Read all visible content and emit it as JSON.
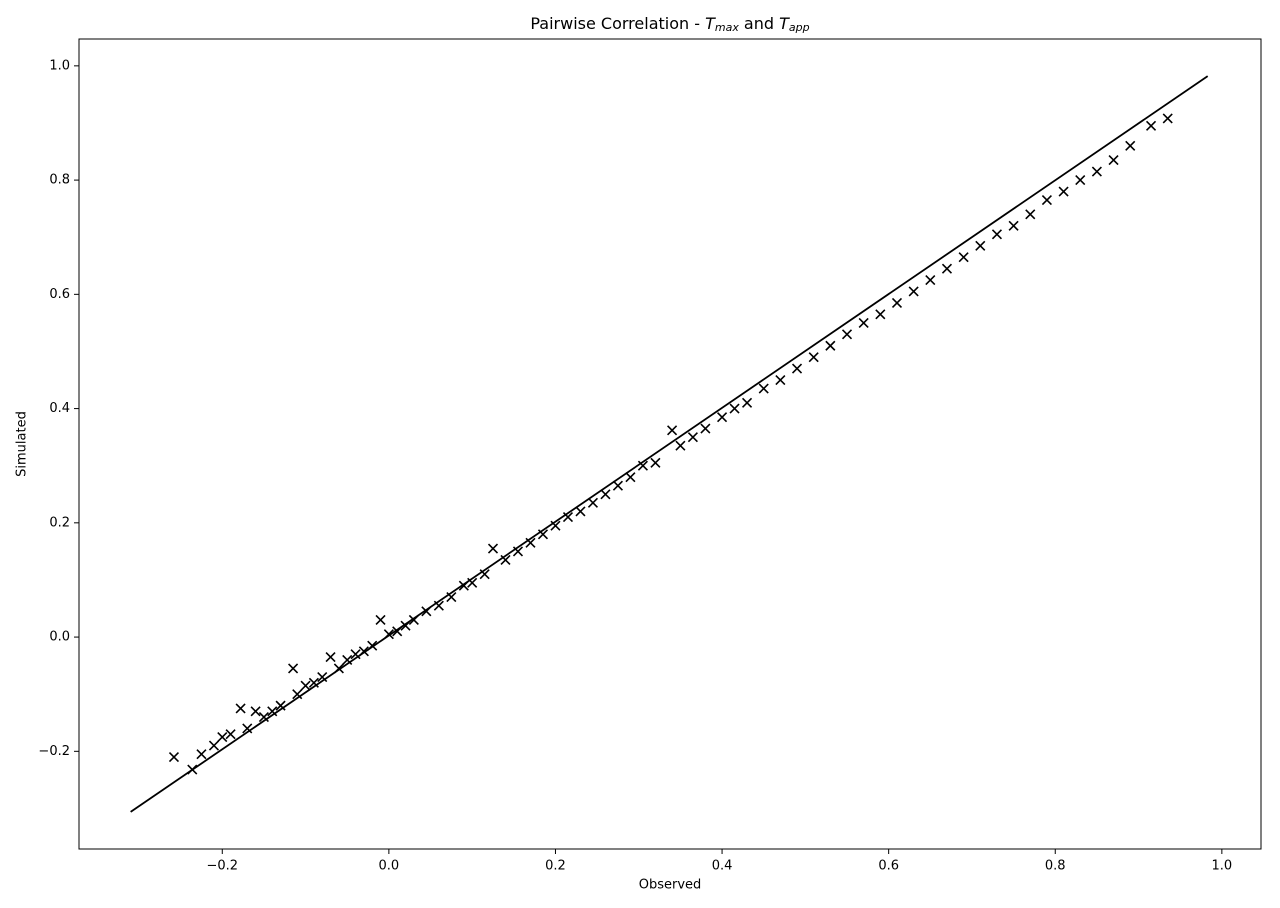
{
  "chart_data": {
    "type": "scatter",
    "title": [
      "Pairwise Correlation - ",
      "T",
      "max",
      " and ",
      "T",
      "app"
    ],
    "xlabel": "Observed",
    "ylabel": "Simulated",
    "xlim": [
      -0.372,
      1.047
    ],
    "ylim": [
      -0.371,
      1.047
    ],
    "xticks": [
      {
        "value": -0.2,
        "label": "−0.2"
      },
      {
        "value": 0,
        "label": "0.0"
      },
      0.2,
      0.4,
      0.6,
      0.8,
      {
        "value": 1,
        "label": "1.0"
      }
    ],
    "yticks": [
      {
        "value": -0.2,
        "label": "−0.2"
      },
      {
        "value": 0,
        "label": "0.0"
      },
      0.2,
      0.4,
      0.6,
      0.8,
      {
        "value": 1,
        "label": "1.0"
      }
    ],
    "grid": false,
    "color": "#000000",
    "marker": "x",
    "line": {
      "x": [
        -0.31,
        0.983
      ],
      "y": [
        -0.306,
        0.982
      ],
      "color": "#000000"
    },
    "x": [
      -0.258,
      -0.236,
      -0.225,
      -0.21,
      -0.2,
      -0.19,
      -0.178,
      -0.17,
      -0.16,
      -0.15,
      -0.14,
      -0.13,
      -0.115,
      -0.11,
      -0.1,
      -0.09,
      -0.08,
      -0.07,
      -0.06,
      -0.05,
      -0.04,
      -0.03,
      -0.02,
      -0.01,
      0.0,
      0.01,
      0.02,
      0.03,
      0.045,
      0.06,
      0.075,
      0.09,
      0.1,
      0.115,
      0.125,
      0.14,
      0.155,
      0.17,
      0.185,
      0.2,
      0.215,
      0.23,
      0.245,
      0.26,
      0.275,
      0.29,
      0.305,
      0.32,
      0.34,
      0.35,
      0.365,
      0.38,
      0.4,
      0.415,
      0.43,
      0.45,
      0.47,
      0.49,
      0.51,
      0.53,
      0.55,
      0.57,
      0.59,
      0.61,
      0.63,
      0.65,
      0.67,
      0.69,
      0.71,
      0.73,
      0.75,
      0.77,
      0.79,
      0.81,
      0.83,
      0.85,
      0.87,
      0.89,
      0.915,
      0.935
    ],
    "values": [
      -0.21,
      -0.232,
      -0.205,
      -0.19,
      -0.175,
      -0.17,
      -0.125,
      -0.16,
      -0.13,
      -0.14,
      -0.13,
      -0.12,
      -0.055,
      -0.1,
      -0.085,
      -0.08,
      -0.07,
      -0.035,
      -0.055,
      -0.04,
      -0.03,
      -0.025,
      -0.015,
      0.03,
      0.005,
      0.01,
      0.02,
      0.03,
      0.045,
      0.055,
      0.07,
      0.09,
      0.095,
      0.11,
      0.155,
      0.135,
      0.15,
      0.165,
      0.18,
      0.195,
      0.21,
      0.22,
      0.235,
      0.25,
      0.265,
      0.28,
      0.3,
      0.305,
      0.362,
      0.335,
      0.35,
      0.365,
      0.385,
      0.4,
      0.41,
      0.435,
      0.45,
      0.47,
      0.49,
      0.51,
      0.53,
      0.55,
      0.565,
      0.585,
      0.605,
      0.625,
      0.645,
      0.665,
      0.685,
      0.705,
      0.72,
      0.74,
      0.765,
      0.78,
      0.8,
      0.815,
      0.835,
      0.86,
      0.895,
      0.908
    ]
  }
}
